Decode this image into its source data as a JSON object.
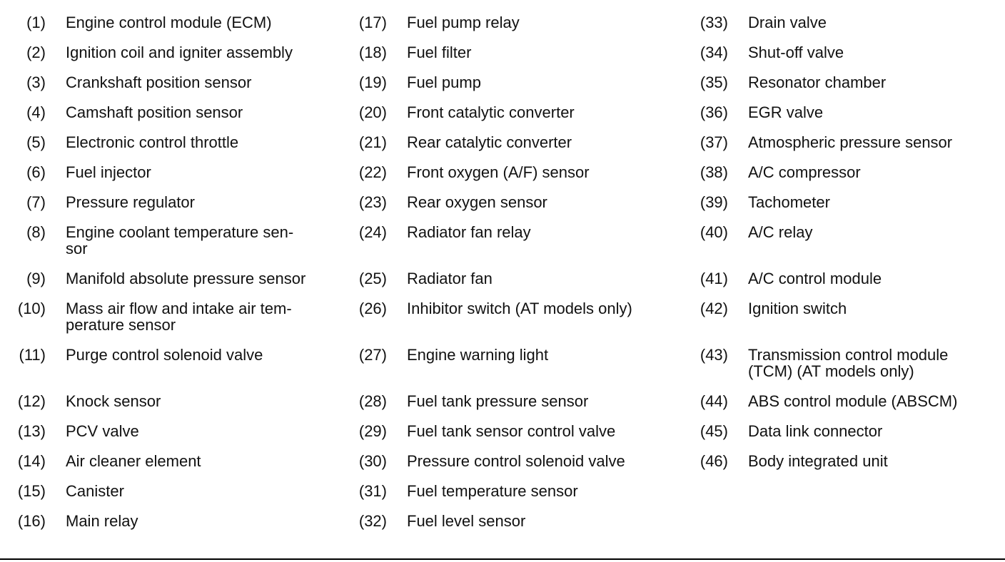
{
  "colors": {
    "text": "#111111",
    "rule": "#000000"
  },
  "legend": {
    "rows": [
      {
        "cells": [
          {
            "num": "(1)",
            "label": "Engine control module (ECM)"
          },
          {
            "num": "(17)",
            "label": "Fuel pump relay"
          },
          {
            "num": "(33)",
            "label": "Drain valve"
          }
        ]
      },
      {
        "cells": [
          {
            "num": "(2)",
            "label": "Ignition coil and igniter assembly"
          },
          {
            "num": "(18)",
            "label": "Fuel filter"
          },
          {
            "num": "(34)",
            "label": "Shut-off valve"
          }
        ]
      },
      {
        "cells": [
          {
            "num": "(3)",
            "label": "Crankshaft position sensor"
          },
          {
            "num": "(19)",
            "label": "Fuel pump"
          },
          {
            "num": "(35)",
            "label": "Resonator chamber"
          }
        ]
      },
      {
        "cells": [
          {
            "num": "(4)",
            "label": "Camshaft position sensor"
          },
          {
            "num": "(20)",
            "label": "Front catalytic converter"
          },
          {
            "num": "(36)",
            "label": "EGR valve"
          }
        ]
      },
      {
        "cells": [
          {
            "num": "(5)",
            "label": "Electronic control throttle"
          },
          {
            "num": "(21)",
            "label": "Rear catalytic converter"
          },
          {
            "num": "(37)",
            "label": "Atmospheric pressure sensor"
          }
        ]
      },
      {
        "cells": [
          {
            "num": "(6)",
            "label": "Fuel injector"
          },
          {
            "num": "(22)",
            "label": "Front oxygen (A/F) sensor"
          },
          {
            "num": "(38)",
            "label": "A/C compressor"
          }
        ]
      },
      {
        "cells": [
          {
            "num": "(7)",
            "label": "Pressure regulator"
          },
          {
            "num": "(23)",
            "label": "Rear oxygen sensor"
          },
          {
            "num": "(39)",
            "label": "Tachometer"
          }
        ]
      },
      {
        "cells": [
          {
            "num": "(8)",
            "label": "Engine coolant temperature sen-\nsor"
          },
          {
            "num": "(24)",
            "label": "Radiator fan relay"
          },
          {
            "num": "(40)",
            "label": "A/C relay"
          }
        ]
      },
      {
        "cells": [
          {
            "num": "(9)",
            "label": "Manifold absolute pressure sensor"
          },
          {
            "num": "(25)",
            "label": "Radiator fan"
          },
          {
            "num": "(41)",
            "label": "A/C control module"
          }
        ]
      },
      {
        "cells": [
          {
            "num": "(10)",
            "label": "Mass air flow and intake air tem-\nperature sensor"
          },
          {
            "num": "(26)",
            "label": "Inhibitor switch (AT models only)"
          },
          {
            "num": "(42)",
            "label": "Ignition switch"
          }
        ]
      },
      {
        "cells": [
          {
            "num": "(11)",
            "label": "Purge control solenoid valve"
          },
          {
            "num": "(27)",
            "label": "Engine warning light"
          },
          {
            "num": "(43)",
            "label": "Transmission control module\n(TCM) (AT models only)"
          }
        ]
      },
      {
        "cells": [
          {
            "num": "(12)",
            "label": "Knock sensor"
          },
          {
            "num": "(28)",
            "label": "Fuel tank pressure sensor"
          },
          {
            "num": "(44)",
            "label": "ABS control module (ABSCM)"
          }
        ]
      },
      {
        "cells": [
          {
            "num": "(13)",
            "label": "PCV valve"
          },
          {
            "num": "(29)",
            "label": "Fuel tank sensor control valve"
          },
          {
            "num": "(45)",
            "label": "Data link connector"
          }
        ]
      },
      {
        "cells": [
          {
            "num": "(14)",
            "label": "Air cleaner element"
          },
          {
            "num": "(30)",
            "label": "Pressure control solenoid valve"
          },
          {
            "num": "(46)",
            "label": "Body integrated unit"
          }
        ]
      },
      {
        "cells": [
          {
            "num": "(15)",
            "label": "Canister"
          },
          {
            "num": "(31)",
            "label": "Fuel temperature sensor"
          }
        ]
      },
      {
        "cells": [
          {
            "num": "(16)",
            "label": "Main relay"
          },
          {
            "num": "(32)",
            "label": "Fuel level sensor"
          }
        ]
      }
    ]
  }
}
